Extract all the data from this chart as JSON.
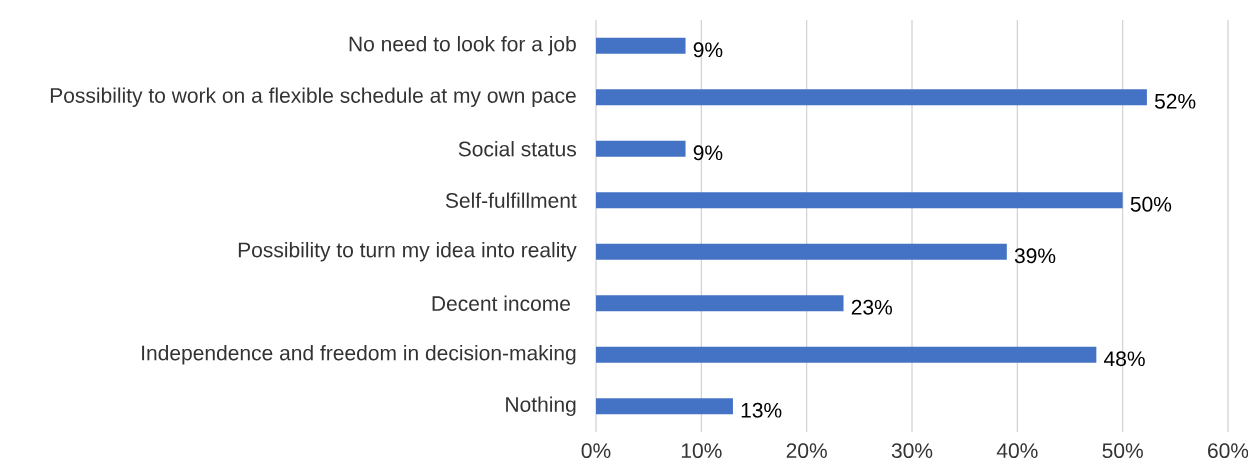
{
  "chart_data": {
    "type": "bar",
    "orientation": "horizontal",
    "categories": [
      "No need to look for a job",
      "Possibility to work on a flexible schedule at my own pace",
      "Social status",
      "Self-fulfillment",
      "Possibility to turn my idea into reality",
      "Decent income ",
      "Independence and freedom in decision-making",
      "Nothing"
    ],
    "values": [
      8.5,
      52.3,
      8.5,
      50.0,
      39.0,
      23.5,
      47.5,
      13.0
    ],
    "value_labels": [
      "9%",
      "52%",
      "9%",
      "50%",
      "39%",
      "23%",
      "48%",
      "13%"
    ],
    "color": "#4472c4",
    "xlim": [
      0,
      60
    ],
    "xticks": [
      {
        "value": 0,
        "label": "0%"
      },
      {
        "value": 10,
        "label": "10%"
      },
      {
        "value": 20,
        "label": "20%"
      },
      {
        "value": 30,
        "label": "30%"
      },
      {
        "value": 40,
        "label": "40%"
      },
      {
        "value": 50,
        "label": "50%"
      },
      {
        "value": 60,
        "label": "60%"
      }
    ],
    "grid": "x"
  }
}
